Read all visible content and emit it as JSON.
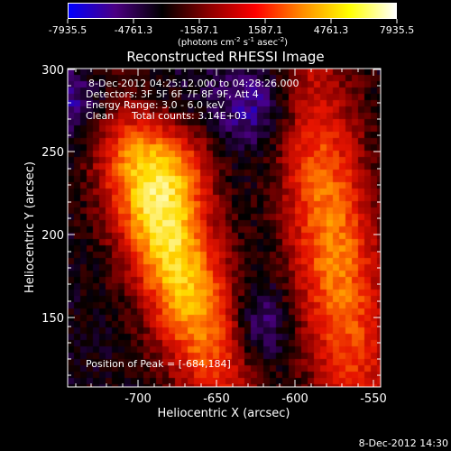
{
  "colorbar": {
    "ticks": [
      "-7935.5",
      "-4761.3",
      "-1587.1",
      "1587.1",
      "4761.3",
      "7935.5"
    ],
    "units_prefix": "(photons cm",
    "units_exp1": "-2",
    "units_mid": " s",
    "units_exp2": "-1",
    "units_mid2": " asec",
    "units_exp3": "-2",
    "units_suffix": ")",
    "colors": [
      "#0000ff",
      "#4b0082",
      "#000000",
      "#8b0000",
      "#ff0000",
      "#ff8c00",
      "#ffff00",
      "#ffffff"
    ]
  },
  "title": "Reconstructed RHESSI Image",
  "overlay": {
    "time_range": "8-Dec-2012 04:25:12.000 to 04:28:26.000",
    "detectors": "Detectors: 3F 5F 6F 7F 8F 9F, Att 4",
    "energy": "Energy Range: 3.0 - 6.0 keV",
    "method": "Clean",
    "counts": "Total counts: 3.14E+03",
    "peak": "Position of Peak = [-684,184]"
  },
  "axes": {
    "xlabel": "Heliocentric X (arcsec)",
    "ylabel": "Heliocentric Y (arcsec)",
    "xticks": [
      "-700",
      "-650",
      "-600",
      "-550"
    ],
    "yticks": [
      "150",
      "200",
      "250",
      "300"
    ]
  },
  "footer": {
    "timestamp": "8-Dec-2012 14:30"
  }
}
